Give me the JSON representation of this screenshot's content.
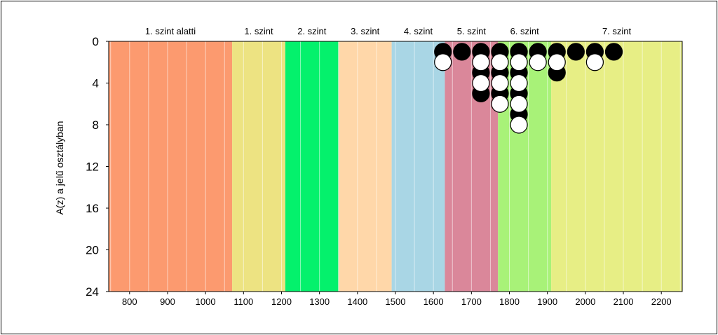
{
  "chart_data": {
    "type": "scatter",
    "title": "",
    "xlabel": "",
    "ylabel": "A(z) a jelű osztályban",
    "xlim": [
      745,
      2255
    ],
    "ylim": [
      0,
      24
    ],
    "y_inverted": true,
    "xticks": [
      800,
      900,
      1000,
      1100,
      1200,
      1300,
      1400,
      1500,
      1600,
      1700,
      1800,
      1900,
      2000,
      2100,
      2200
    ],
    "xtick_labels": [
      "800",
      "900",
      "1000",
      "1100",
      "1200",
      "1300",
      "1400",
      "1500",
      "1600",
      "1700",
      "1800",
      "1900",
      "2000",
      "2100",
      "2200"
    ],
    "yticks": [
      0,
      4,
      8,
      12,
      16,
      20,
      24
    ],
    "ytick_labels": [
      "0",
      "4",
      "8",
      "12",
      "16",
      "20",
      "24"
    ],
    "grid": "vertical",
    "bands": [
      {
        "label": "1. szint alatti",
        "x_from": 745,
        "x_to": 1070,
        "color": "#fc9a6f"
      },
      {
        "label": "1. szint",
        "x_from": 1070,
        "x_to": 1210,
        "color": "#ede382"
      },
      {
        "label": "2. szint",
        "x_from": 1210,
        "x_to": 1350,
        "color": "#04f16c"
      },
      {
        "label": "3. szint",
        "x_from": 1350,
        "x_to": 1490,
        "color": "#ffd7a9"
      },
      {
        "label": "4. szint",
        "x_from": 1490,
        "x_to": 1630,
        "color": "#a9d6e5"
      },
      {
        "label": "5. szint",
        "x_from": 1630,
        "x_to": 1770,
        "color": "#da879a"
      },
      {
        "label": "6. szint",
        "x_from": 1770,
        "x_to": 1910,
        "color": "#a8f278"
      },
      {
        "label": "7. szint",
        "x_from": 1910,
        "x_to": 2255,
        "color": "#e7ee85"
      }
    ],
    "series": [
      {
        "marker": "black",
        "color": "#000000",
        "points": [
          {
            "x": 1625,
            "y": 1
          },
          {
            "x": 1675,
            "y": 1
          },
          {
            "x": 1725,
            "y": 1
          },
          {
            "x": 1725,
            "y": 3
          },
          {
            "x": 1725,
            "y": 5
          },
          {
            "x": 1775,
            "y": 1
          },
          {
            "x": 1775,
            "y": 3
          },
          {
            "x": 1775,
            "y": 5
          },
          {
            "x": 1825,
            "y": 1
          },
          {
            "x": 1825,
            "y": 3
          },
          {
            "x": 1825,
            "y": 5
          },
          {
            "x": 1825,
            "y": 7
          },
          {
            "x": 1875,
            "y": 1
          },
          {
            "x": 1925,
            "y": 1
          },
          {
            "x": 1925,
            "y": 3
          },
          {
            "x": 1975,
            "y": 1
          },
          {
            "x": 2025,
            "y": 1
          },
          {
            "x": 2075,
            "y": 1
          }
        ]
      },
      {
        "marker": "white",
        "color": "#ffffff",
        "points": [
          {
            "x": 1625,
            "y": 2
          },
          {
            "x": 1725,
            "y": 2
          },
          {
            "x": 1725,
            "y": 4
          },
          {
            "x": 1775,
            "y": 2
          },
          {
            "x": 1775,
            "y": 4
          },
          {
            "x": 1775,
            "y": 6
          },
          {
            "x": 1825,
            "y": 2
          },
          {
            "x": 1825,
            "y": 4
          },
          {
            "x": 1825,
            "y": 6
          },
          {
            "x": 1825,
            "y": 8
          },
          {
            "x": 1875,
            "y": 2
          },
          {
            "x": 1925,
            "y": 2
          },
          {
            "x": 2025,
            "y": 2
          }
        ]
      }
    ]
  }
}
